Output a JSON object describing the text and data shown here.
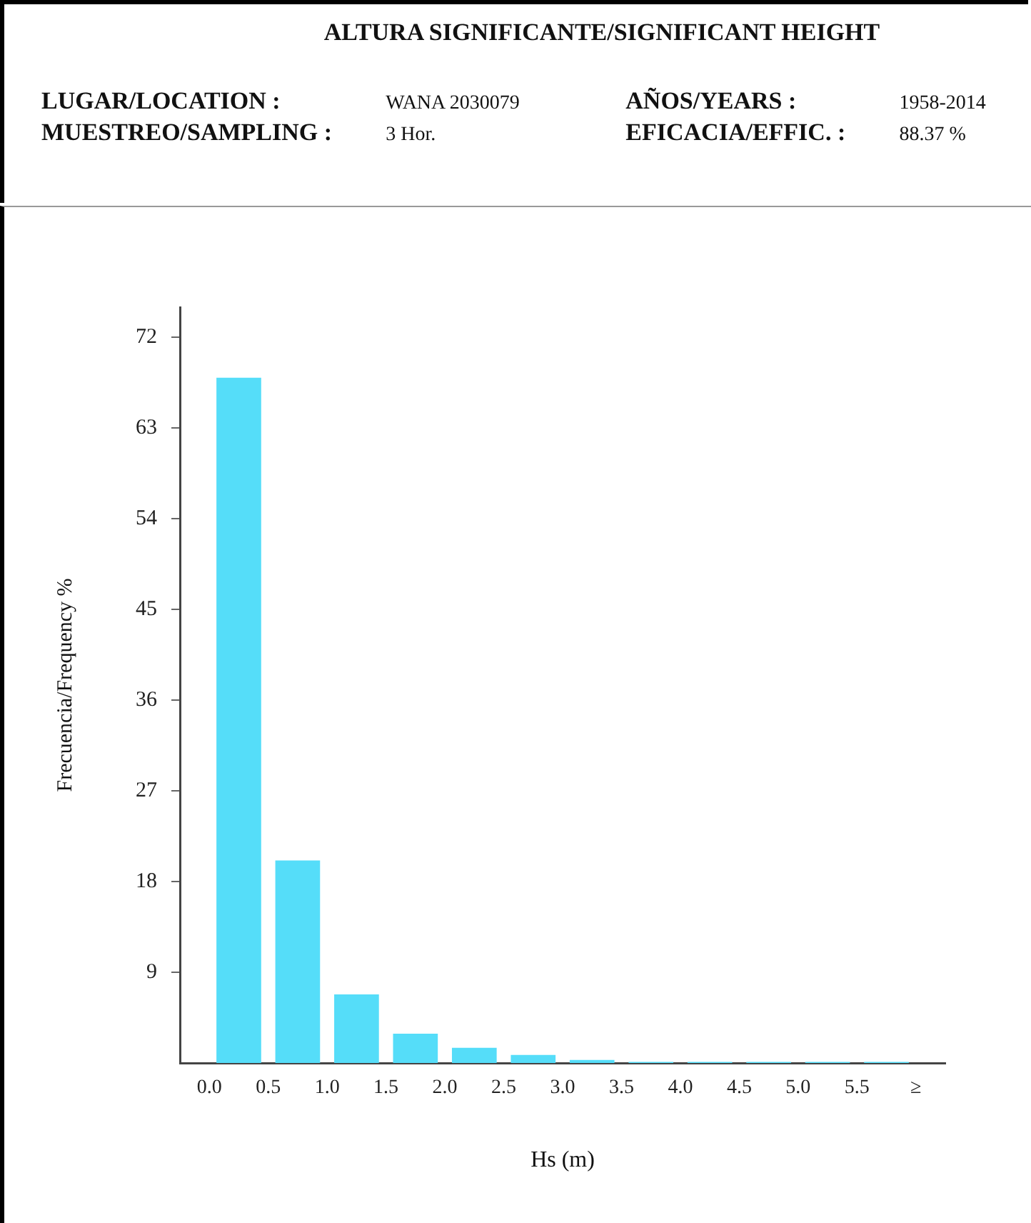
{
  "chart_data": {
    "type": "histogram",
    "title": "ALTURA SIGNIFICANTE/SIGNIFICANT HEIGHT",
    "annotations": [
      "LUGAR/LOCATION :",
      "WANA 2030079",
      "AÑOS/YEARS :",
      "1958-2014",
      "MUESTREO/SAMPLING :",
      "3 Hor.",
      "EFICACIA/EFFIC. :",
      "88.37 %"
    ],
    "xlabel": "Hs (m)",
    "ylabel": "Frecuencia/Frequency %",
    "bins": [
      0,
      0.5,
      1,
      1.5,
      2,
      2.5,
      3,
      3.5,
      4,
      4.5,
      5,
      5.5,
      6
    ],
    "values": [
      68,
      20.1,
      6.8,
      2.9,
      1.5,
      0.8,
      0.3,
      0.1,
      0.1,
      0.1,
      0.1,
      0.1
    ],
    "color": "#55ddf9",
    "xlim": [
      -0.25,
      6.25
    ],
    "xticks": [
      {
        "value": 0,
        "label": "0.0"
      },
      {
        "value": 0.5,
        "label": "0.5"
      },
      {
        "value": 1,
        "label": "1.0"
      },
      {
        "value": 1.5,
        "label": "1.5"
      },
      {
        "value": 2,
        "label": "2.0"
      },
      {
        "value": 2.5,
        "label": "2.5"
      },
      {
        "value": 3,
        "label": "3.0"
      },
      {
        "value": 3.5,
        "label": "3.5"
      },
      {
        "value": 4,
        "label": "4.0"
      },
      {
        "value": 4.5,
        "label": "4.5"
      },
      {
        "value": 5,
        "label": "5.0"
      },
      {
        "value": 5.5,
        "label": "5.5"
      },
      {
        "value": 6,
        "label": "≥"
      }
    ],
    "ylim": [
      0,
      75
    ],
    "yticks": [
      9,
      18,
      27,
      36,
      45,
      54,
      63,
      72
    ],
    "grid": false,
    "legend": false
  }
}
